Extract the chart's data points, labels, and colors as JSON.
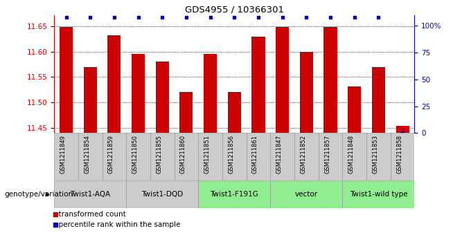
{
  "title": "GDS4955 / 10366301",
  "samples": [
    "GSM1211849",
    "GSM1211854",
    "GSM1211859",
    "GSM1211850",
    "GSM1211855",
    "GSM1211860",
    "GSM1211851",
    "GSM1211856",
    "GSM1211861",
    "GSM1211847",
    "GSM1211852",
    "GSM1211857",
    "GSM1211848",
    "GSM1211853",
    "GSM1211858"
  ],
  "transformed_count": [
    11.649,
    11.57,
    11.632,
    11.595,
    11.58,
    11.521,
    11.596,
    11.521,
    11.63,
    11.649,
    11.6,
    11.649,
    11.532,
    11.57,
    11.454
  ],
  "percentile_rank": [
    100,
    100,
    100,
    100,
    100,
    100,
    100,
    100,
    100,
    100,
    100,
    100,
    100,
    100,
    0
  ],
  "groups": [
    {
      "label": "Twist1-AQA",
      "start": 0,
      "end": 2,
      "color": "#cccccc"
    },
    {
      "label": "Twist1-DQD",
      "start": 3,
      "end": 5,
      "color": "#cccccc"
    },
    {
      "label": "Twist1-F191G",
      "start": 6,
      "end": 8,
      "color": "#90ee90"
    },
    {
      "label": "vector",
      "start": 9,
      "end": 11,
      "color": "#90ee90"
    },
    {
      "label": "Twist1-wild type",
      "start": 12,
      "end": 14,
      "color": "#90ee90"
    }
  ],
  "ylim_left": [
    11.44,
    11.672
  ],
  "yticks_left": [
    11.45,
    11.5,
    11.55,
    11.6,
    11.65
  ],
  "yticks_right": [
    0,
    25,
    50,
    75,
    100
  ],
  "bar_color": "#cc0000",
  "blue_marker_color": "#0000bb",
  "sample_cell_color": "#cccccc",
  "bg_color": "#ffffff",
  "axis_color_left": "#cc0000",
  "axis_color_right": "#0000bb",
  "legend_red_label": "transformed count",
  "legend_blue_label": "percentile rank within the sample",
  "genotype_label": "genotype/variation",
  "bar_width": 0.55,
  "base_value": 11.44
}
